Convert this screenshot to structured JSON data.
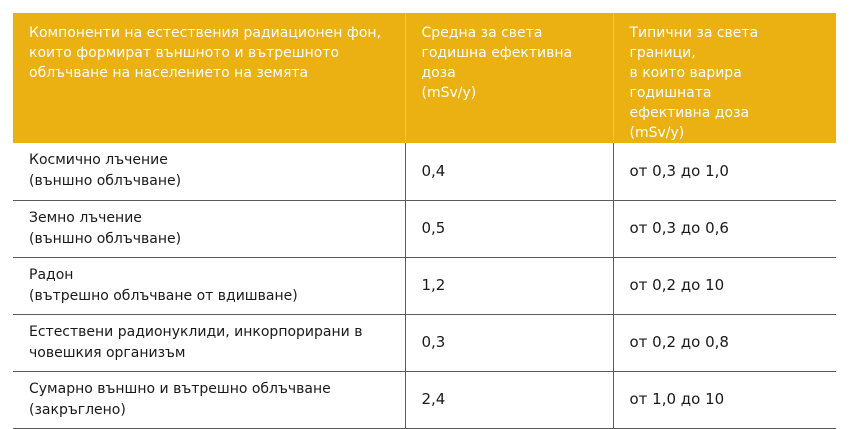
{
  "table": {
    "headers": [
      "Компоненти на естествения радиационен фон,\nкоито формират външното и вътрешното\nоблъчване на населението на земята",
      "Средна за света\nгодишна ефективна доза\n(mSv/y)",
      "Типични за света граници,\nв които варира годишната\nефективна доза\n(mSv/y)"
    ],
    "rows": [
      {
        "component": "Космично лъчение\n(външно облъчване)",
        "average": "0,4",
        "range": "от 0,3 до 1,0"
      },
      {
        "component": "Земно лъчение\n(външно облъчване)",
        "average": "0,5",
        "range": "от 0,3 до 0,6"
      },
      {
        "component": "Радон\n(вътрешно облъчване от вдишване)",
        "average": "1,2",
        "range": "от 0,2 до 10"
      },
      {
        "component": "Естествени радионуклиди, инкорпорирани в\nчовешкия организъм",
        "average": "0,3",
        "range": "от 0,2 до 0,8"
      },
      {
        "component": "Сумарно външно и вътрешно облъчване\n(закръглено)",
        "average": "2,4",
        "range": "от 1,0 до 10"
      }
    ]
  },
  "colors": {
    "header_background": "#ebb112",
    "header_text": "#ffffff",
    "row_border": "#5a5a5a"
  }
}
